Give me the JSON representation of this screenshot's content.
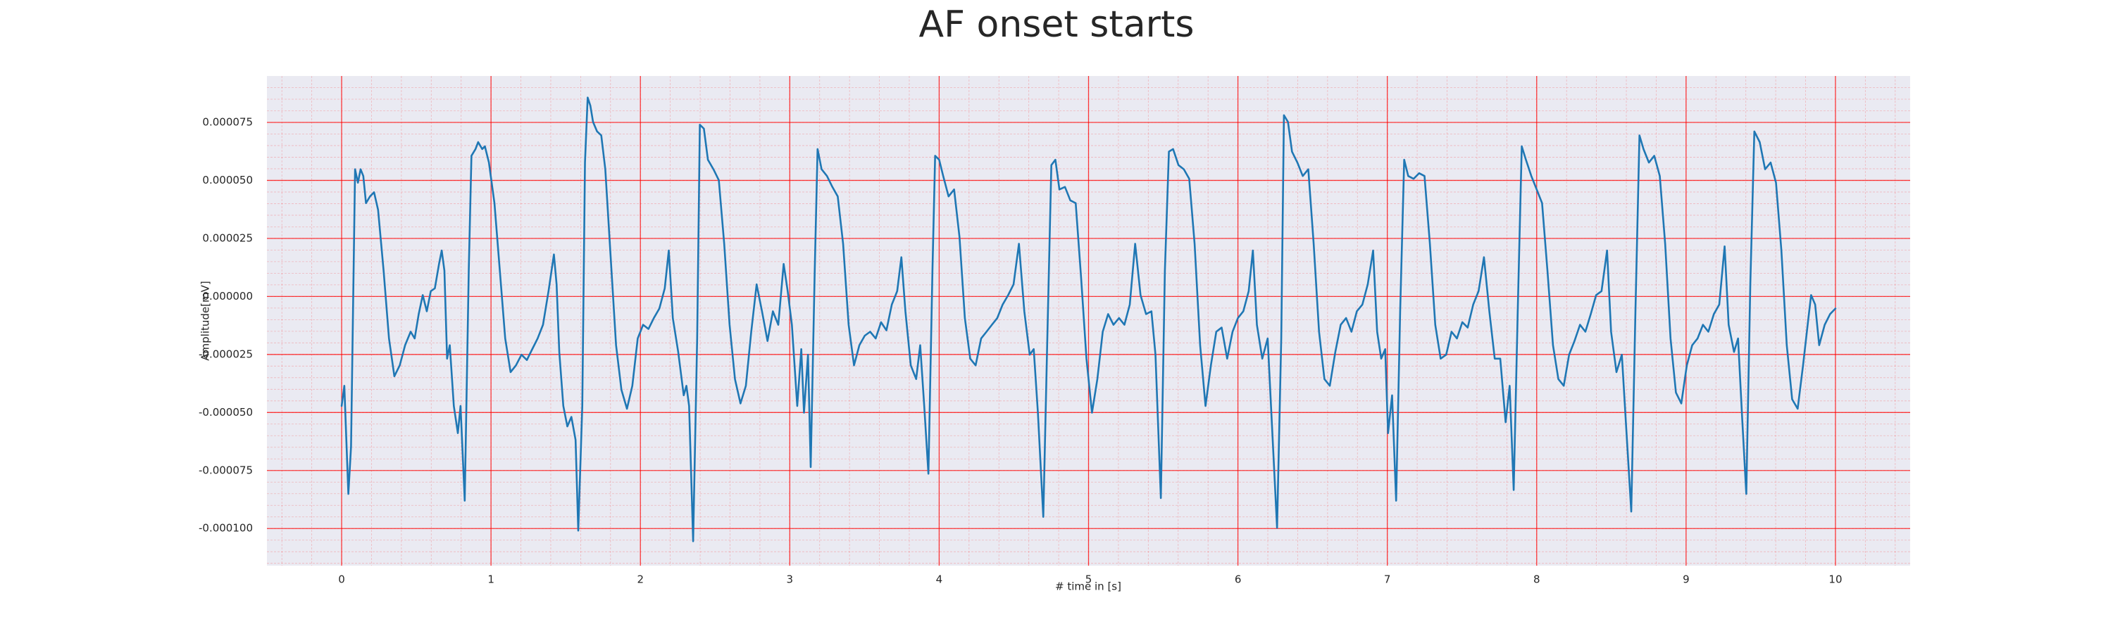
{
  "chart_data": {
    "type": "line",
    "title": "AF onset starts",
    "xlabel": "# time in [s]",
    "ylabel": "Amplitude[mV]",
    "color": "#1f77b4",
    "grid": true,
    "minor_grid": true,
    "grid_color": "#ff0000",
    "xlim": [
      -0.5,
      10.5
    ],
    "ylim": [
      -0.000116,
      9.5e-05
    ],
    "xticks": [
      0,
      1,
      2,
      3,
      4,
      5,
      6,
      7,
      8,
      9,
      10
    ],
    "yticks": [
      {
        "value": -0.0001,
        "label": "-0.000100"
      },
      {
        "value": -7.5e-05,
        "label": "-0.000075"
      },
      {
        "value": -5e-05,
        "label": "-0.000050"
      },
      {
        "value": -2.5e-05,
        "label": "-0.000025"
      },
      {
        "value": 0,
        "label": "0.000000"
      },
      {
        "value": 2.5e-05,
        "label": "0.000025"
      },
      {
        "value": 5e-05,
        "label": "0.000050"
      },
      {
        "value": 7.5e-05,
        "label": "0.000075"
      }
    ],
    "x": [
      0.0,
      0.018,
      0.045,
      0.063,
      0.09,
      0.109,
      0.127,
      0.145,
      0.163,
      0.19,
      0.217,
      0.244,
      0.281,
      0.317,
      0.353,
      0.389,
      0.425,
      0.462,
      0.489,
      0.516,
      0.543,
      0.57,
      0.597,
      0.624,
      0.652,
      0.67,
      0.688,
      0.706,
      0.724,
      0.751,
      0.778,
      0.796,
      0.824,
      0.851,
      0.869,
      0.896,
      0.914,
      0.941,
      0.959,
      0.986,
      1.023,
      1.059,
      1.095,
      1.131,
      1.167,
      1.204,
      1.24,
      1.276,
      1.312,
      1.348,
      1.385,
      1.421,
      1.439,
      1.457,
      1.484,
      1.511,
      1.538,
      1.566,
      1.584,
      1.611,
      1.629,
      1.647,
      1.665,
      1.683,
      1.71,
      1.738,
      1.765,
      1.801,
      1.837,
      1.873,
      1.91,
      1.946,
      1.982,
      2.018,
      2.054,
      2.09,
      2.127,
      2.163,
      2.19,
      2.217,
      2.253,
      2.29,
      2.308,
      2.326,
      2.353,
      2.38,
      2.398,
      2.425,
      2.452,
      2.489,
      2.525,
      2.561,
      2.597,
      2.633,
      2.67,
      2.706,
      2.742,
      2.778,
      2.814,
      2.851,
      2.887,
      2.923,
      2.959,
      2.986,
      3.014,
      3.05,
      3.077,
      3.095,
      3.122,
      3.14,
      3.167,
      3.186,
      3.213,
      3.249,
      3.285,
      3.321,
      3.357,
      3.394,
      3.43,
      3.466,
      3.502,
      3.538,
      3.575,
      3.611,
      3.647,
      3.683,
      3.719,
      3.747,
      3.774,
      3.81,
      3.846,
      3.873,
      3.9,
      3.928,
      3.955,
      3.973,
      4.0,
      4.027,
      4.063,
      4.1,
      4.136,
      4.172,
      4.208,
      4.244,
      4.281,
      4.317,
      4.353,
      4.389,
      4.425,
      4.462,
      4.498,
      4.534,
      4.57,
      4.606,
      4.633,
      4.661,
      4.697,
      4.724,
      4.751,
      4.778,
      4.805,
      4.842,
      4.878,
      4.914,
      4.95,
      4.986,
      5.023,
      5.059,
      5.095,
      5.131,
      5.167,
      5.204,
      5.24,
      5.276,
      5.312,
      5.348,
      5.385,
      5.421,
      5.448,
      5.484,
      5.511,
      5.538,
      5.566,
      5.602,
      5.638,
      5.674,
      5.71,
      5.747,
      5.783,
      5.819,
      5.855,
      5.891,
      5.928,
      5.964,
      6.0,
      6.036,
      6.072,
      6.1,
      6.127,
      6.163,
      6.199,
      6.226,
      6.262,
      6.29,
      6.308,
      6.335,
      6.362,
      6.398,
      6.434,
      6.471,
      6.507,
      6.543,
      6.579,
      6.615,
      6.652,
      6.688,
      6.724,
      6.76,
      6.796,
      6.833,
      6.869,
      6.905,
      6.932,
      6.959,
      6.986,
      7.005,
      7.032,
      7.059,
      7.086,
      7.113,
      7.14,
      7.176,
      7.213,
      7.249,
      7.285,
      7.321,
      7.357,
      7.394,
      7.43,
      7.466,
      7.502,
      7.538,
      7.575,
      7.611,
      7.647,
      7.683,
      7.719,
      7.756,
      7.792,
      7.819,
      7.846,
      7.873,
      7.9,
      7.928,
      7.964,
      8.0,
      8.036,
      8.072,
      8.109,
      8.145,
      8.181,
      8.217,
      8.253,
      8.29,
      8.326,
      8.362,
      8.398,
      8.434,
      8.471,
      8.498,
      8.534,
      8.57,
      8.597,
      8.633,
      8.661,
      8.688,
      8.715,
      8.751,
      8.787,
      8.824,
      8.86,
      8.896,
      8.932,
      8.968,
      9.005,
      9.041,
      9.077,
      9.113,
      9.149,
      9.186,
      9.222,
      9.258,
      9.285,
      9.321,
      9.348,
      9.376,
      9.403,
      9.43,
      9.457,
      9.493,
      9.529,
      9.566,
      9.602,
      9.638,
      9.674,
      9.71,
      9.747,
      9.783,
      9.819,
      9.837,
      9.864,
      9.891,
      9.928,
      9.964,
      10.0
    ],
    "values": [
      -4.72e-05,
      -3.85e-05,
      -8.51e-05,
      -6.47e-05,
      5.48e-05,
      4.9e-05,
      5.48e-05,
      5.19e-05,
      4.02e-05,
      4.31e-05,
      4.49e-05,
      3.73e-05,
      1.11e-05,
      -1.81e-05,
      -3.44e-05,
      -2.97e-05,
      -2.1e-05,
      -1.52e-05,
      -1.81e-05,
      -7.6e-06,
      6e-07,
      -6.4e-06,
      2.3e-06,
      3.5e-06,
      1.4e-05,
      1.98e-05,
      1.11e-05,
      -2.68e-05,
      -2.1e-05,
      -4.72e-05,
      -5.89e-05,
      -4.72e-05,
      -8.8e-05,
      1.11e-05,
      6.06e-05,
      6.35e-05,
      6.65e-05,
      6.35e-05,
      6.47e-05,
      5.77e-05,
      4.02e-05,
      1.11e-05,
      -1.81e-05,
      -3.26e-05,
      -2.97e-05,
      -2.51e-05,
      -2.74e-05,
      -2.27e-05,
      -1.81e-05,
      -1.22e-05,
      2.3e-06,
      1.81e-05,
      5.2e-06,
      -2.39e-05,
      -4.72e-05,
      -5.6e-05,
      -5.19e-05,
      -6.18e-05,
      -0.0001009,
      -4.72e-05,
      5.77e-05,
      8.57e-05,
      8.22e-05,
      7.52e-05,
      7.11e-05,
      6.94e-05,
      5.48e-05,
      1.69e-05,
      -2.1e-05,
      -4.02e-05,
      -4.84e-05,
      -3.85e-05,
      -1.81e-05,
      -1.22e-05,
      -1.4e-05,
      -9.3e-06,
      -5.2e-06,
      3.5e-06,
      1.98e-05,
      -9.3e-06,
      -2.39e-05,
      -4.26e-05,
      -3.85e-05,
      -4.72e-05,
      -0.0001055,
      -1.81e-05,
      7.4e-05,
      7.23e-05,
      5.89e-05,
      5.48e-05,
      5.01e-05,
      2.27e-05,
      -1.22e-05,
      -3.56e-05,
      -4.61e-05,
      -3.85e-05,
      -1.52e-05,
      5.2e-06,
      -6.4e-06,
      -1.92e-05,
      -6.4e-06,
      -1.22e-05,
      1.4e-05,
      2.3e-06,
      -1.22e-05,
      -4.72e-05,
      -2.27e-05,
      -5.01e-05,
      -2.51e-05,
      -7.35e-05,
      1.11e-05,
      6.35e-05,
      5.48e-05,
      5.19e-05,
      4.72e-05,
      4.31e-05,
      2.27e-05,
      -1.22e-05,
      -2.97e-05,
      -2.1e-05,
      -1.69e-05,
      -1.52e-05,
      -1.81e-05,
      -1.11e-05,
      -1.46e-05,
      -3.5e-06,
      2.3e-06,
      1.69e-05,
      -6.4e-06,
      -2.97e-05,
      -3.56e-05,
      -2.1e-05,
      -4.72e-05,
      -7.64e-05,
      1.11e-05,
      6.06e-05,
      5.89e-05,
      5.19e-05,
      4.31e-05,
      4.61e-05,
      2.57e-05,
      -9.3e-06,
      -2.68e-05,
      -2.97e-05,
      -1.81e-05,
      -1.52e-05,
      -1.22e-05,
      -9.3e-06,
      -3.5e-06,
      6e-07,
      5.2e-06,
      2.27e-05,
      -6.4e-06,
      -2.51e-05,
      -2.27e-05,
      -5.01e-05,
      -9.5e-05,
      -1.81e-05,
      5.66e-05,
      5.89e-05,
      4.61e-05,
      4.72e-05,
      4.14e-05,
      4.02e-05,
      8.2e-06,
      -2.68e-05,
      -5.01e-05,
      -3.56e-05,
      -1.52e-05,
      -7.6e-06,
      -1.22e-05,
      -9.3e-06,
      -1.22e-05,
      -3.5e-06,
      2.27e-05,
      6e-07,
      -7.6e-06,
      -6.4e-06,
      -2.51e-05,
      -8.69e-05,
      1.11e-05,
      6.24e-05,
      6.35e-05,
      5.66e-05,
      5.48e-05,
      5.07e-05,
      2.27e-05,
      -2.1e-05,
      -4.72e-05,
      -2.97e-05,
      -1.52e-05,
      -1.34e-05,
      -2.68e-05,
      -1.52e-05,
      -9.3e-06,
      -6.4e-06,
      2.3e-06,
      1.98e-05,
      -1.22e-05,
      -2.68e-05,
      -1.81e-05,
      -5.31e-05,
      -9.97e-05,
      -1.81e-05,
      7.81e-05,
      7.52e-05,
      6.24e-05,
      5.77e-05,
      5.19e-05,
      5.48e-05,
      2.27e-05,
      -1.52e-05,
      -3.56e-05,
      -3.85e-05,
      -2.39e-05,
      -1.22e-05,
      -9.3e-06,
      -1.52e-05,
      -6.4e-06,
      -3.5e-06,
      5.2e-06,
      1.98e-05,
      -1.52e-05,
      -2.68e-05,
      -2.27e-05,
      -5.89e-05,
      -4.26e-05,
      -8.8e-05,
      -6.4e-06,
      5.89e-05,
      5.19e-05,
      5.07e-05,
      5.31e-05,
      5.19e-05,
      2.27e-05,
      -1.22e-05,
      -2.68e-05,
      -2.51e-05,
      -1.52e-05,
      -1.81e-05,
      -1.11e-05,
      -1.34e-05,
      -3.5e-06,
      2.3e-06,
      1.69e-05,
      -6.4e-06,
      -2.68e-05,
      -2.68e-05,
      -5.42e-05,
      -3.85e-05,
      -8.34e-05,
      -6.4e-06,
      6.47e-05,
      5.89e-05,
      5.19e-05,
      4.61e-05,
      4.02e-05,
      1.11e-05,
      -2.1e-05,
      -3.56e-05,
      -3.85e-05,
      -2.51e-05,
      -1.92e-05,
      -1.22e-05,
      -1.52e-05,
      -7.6e-06,
      6e-07,
      2.3e-06,
      1.98e-05,
      -1.52e-05,
      -3.26e-05,
      -2.51e-05,
      -5.42e-05,
      -9.27e-05,
      -6.4e-06,
      6.94e-05,
      6.35e-05,
      5.77e-05,
      6.06e-05,
      5.19e-05,
      2.27e-05,
      -1.81e-05,
      -4.14e-05,
      -4.61e-05,
      -2.97e-05,
      -2.1e-05,
      -1.81e-05,
      -1.22e-05,
      -1.52e-05,
      -7.6e-06,
      -3.5e-06,
      2.16e-05,
      -1.22e-05,
      -2.39e-05,
      -1.81e-05,
      -5.31e-05,
      -8.51e-05,
      5.2e-06,
      7.11e-05,
      6.65e-05,
      5.48e-05,
      5.77e-05,
      4.9e-05,
      1.98e-05,
      -2.1e-05,
      -4.43e-05,
      -4.84e-05,
      -2.97e-05,
      -9.3e-06,
      6e-07,
      -3.5e-06,
      -2.1e-05,
      -1.22e-05,
      -7.6e-06,
      -5.2e-06
    ]
  }
}
